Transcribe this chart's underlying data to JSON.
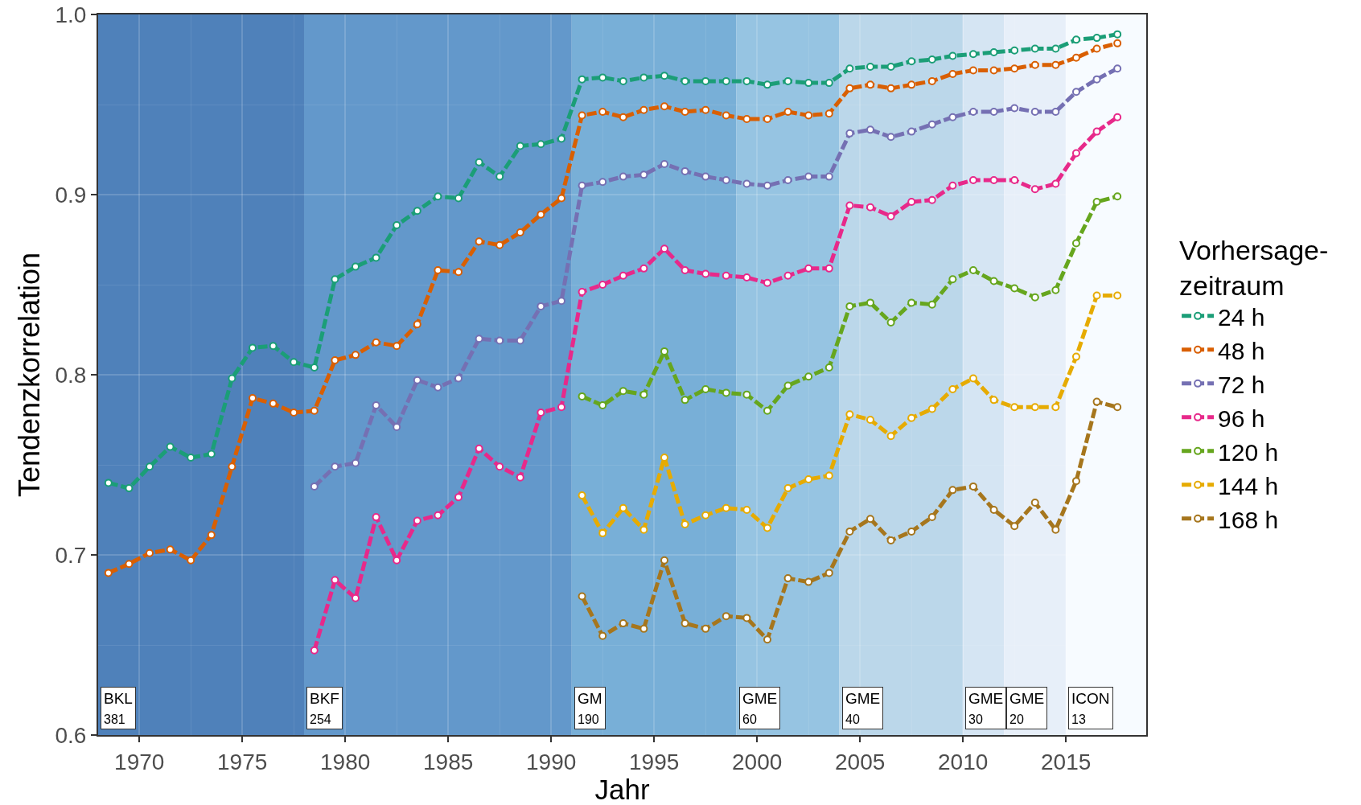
{
  "chart_data": {
    "type": "line",
    "xlabel": "Jahr",
    "ylabel": "Tendenzkorrelation",
    "legend_title": "Vorhersage-\nzeitraum",
    "x": [
      1968.5,
      1969.5,
      1970.5,
      1971.5,
      1972.5,
      1973.5,
      1974.5,
      1975.5,
      1976.5,
      1977.5,
      1978.5,
      1979.5,
      1980.5,
      1981.5,
      1982.5,
      1983.5,
      1984.5,
      1985.5,
      1986.5,
      1987.5,
      1988.5,
      1989.5,
      1990.5,
      1991.5,
      1992.5,
      1993.5,
      1994.5,
      1995.5,
      1996.5,
      1997.5,
      1998.5,
      1999.5,
      2000.5,
      2001.5,
      2002.5,
      2003.5,
      2004.5,
      2005.5,
      2006.5,
      2007.5,
      2008.5,
      2009.5,
      2010.5,
      2011.5,
      2012.5,
      2013.5,
      2014.5,
      2015.5,
      2016.5,
      2017.5
    ],
    "series": [
      {
        "name": "24 h",
        "color": "#1b9e77",
        "values": [
          0.74,
          0.737,
          0.749,
          0.76,
          0.754,
          0.756,
          0.798,
          0.815,
          0.816,
          0.807,
          0.804,
          0.853,
          0.86,
          0.865,
          0.883,
          0.891,
          0.899,
          0.898,
          0.918,
          0.91,
          0.927,
          0.928,
          0.931,
          0.964,
          0.965,
          0.963,
          0.965,
          0.966,
          0.963,
          0.963,
          0.963,
          0.963,
          0.961,
          0.963,
          0.962,
          0.962,
          0.97,
          0.971,
          0.971,
          0.974,
          0.975,
          0.977,
          0.978,
          0.979,
          0.98,
          0.981,
          0.981,
          0.986,
          0.987,
          0.989
        ]
      },
      {
        "name": "48 h",
        "color": "#d95f02",
        "values": [
          0.69,
          0.695,
          0.701,
          0.703,
          0.697,
          0.711,
          0.749,
          0.787,
          0.784,
          0.779,
          0.78,
          0.808,
          0.811,
          0.818,
          0.816,
          0.828,
          0.858,
          0.857,
          0.874,
          0.872,
          0.879,
          0.889,
          0.898,
          0.944,
          0.946,
          0.943,
          0.947,
          0.949,
          0.946,
          0.947,
          0.944,
          0.942,
          0.942,
          0.946,
          0.944,
          0.945,
          0.959,
          0.961,
          0.959,
          0.961,
          0.963,
          0.967,
          0.969,
          0.969,
          0.97,
          0.972,
          0.972,
          0.976,
          0.981,
          0.984
        ]
      },
      {
        "name": "72 h",
        "color": "#7570b3",
        "values": [
          null,
          null,
          null,
          null,
          null,
          null,
          null,
          null,
          null,
          null,
          0.738,
          0.749,
          0.751,
          0.783,
          0.771,
          0.797,
          0.793,
          0.798,
          0.82,
          0.819,
          0.819,
          0.838,
          0.841,
          0.905,
          0.907,
          0.91,
          0.911,
          0.917,
          0.913,
          0.91,
          0.908,
          0.906,
          0.905,
          0.908,
          0.91,
          0.91,
          0.934,
          0.936,
          0.932,
          0.935,
          0.939,
          0.943,
          0.946,
          0.946,
          0.948,
          0.946,
          0.946,
          0.957,
          0.964,
          0.97
        ]
      },
      {
        "name": "96 h",
        "color": "#e7298a",
        "values": [
          null,
          null,
          null,
          null,
          null,
          null,
          null,
          null,
          null,
          null,
          0.647,
          0.686,
          0.676,
          0.721,
          0.697,
          0.719,
          0.722,
          0.732,
          0.759,
          0.749,
          0.743,
          0.779,
          0.782,
          0.846,
          0.85,
          0.855,
          0.859,
          0.87,
          0.858,
          0.856,
          0.855,
          0.854,
          0.851,
          0.855,
          0.859,
          0.859,
          0.894,
          0.893,
          0.888,
          0.896,
          0.897,
          0.905,
          0.908,
          0.908,
          0.908,
          0.903,
          0.906,
          0.923,
          0.935,
          0.943
        ]
      },
      {
        "name": "120 h",
        "color": "#66a61e",
        "values": [
          null,
          null,
          null,
          null,
          null,
          null,
          null,
          null,
          null,
          null,
          null,
          null,
          null,
          null,
          null,
          null,
          null,
          null,
          null,
          null,
          null,
          null,
          null,
          0.788,
          0.783,
          0.791,
          0.789,
          0.813,
          0.786,
          0.792,
          0.79,
          0.789,
          0.78,
          0.794,
          0.799,
          0.804,
          0.838,
          0.84,
          0.829,
          0.84,
          0.839,
          0.853,
          0.858,
          0.852,
          0.848,
          0.843,
          0.847,
          0.873,
          0.896,
          0.899
        ]
      },
      {
        "name": "144 h",
        "color": "#e6ab02",
        "values": [
          null,
          null,
          null,
          null,
          null,
          null,
          null,
          null,
          null,
          null,
          null,
          null,
          null,
          null,
          null,
          null,
          null,
          null,
          null,
          null,
          null,
          null,
          null,
          0.733,
          0.712,
          0.726,
          0.714,
          0.754,
          0.717,
          0.722,
          0.726,
          0.725,
          0.715,
          0.737,
          0.742,
          0.744,
          0.778,
          0.775,
          0.766,
          0.776,
          0.781,
          0.792,
          0.798,
          0.786,
          0.782,
          0.782,
          0.782,
          0.81,
          0.844,
          0.844
        ]
      },
      {
        "name": "168 h",
        "color": "#a6761d",
        "values": [
          null,
          null,
          null,
          null,
          null,
          null,
          null,
          null,
          null,
          null,
          null,
          null,
          null,
          null,
          null,
          null,
          null,
          null,
          null,
          null,
          null,
          null,
          null,
          0.677,
          0.655,
          0.662,
          0.659,
          0.697,
          0.662,
          0.659,
          0.666,
          0.665,
          0.653,
          0.687,
          0.685,
          0.69,
          0.713,
          0.72,
          0.708,
          0.713,
          0.721,
          0.736,
          0.738,
          0.725,
          0.716,
          0.729,
          0.714,
          0.741,
          0.785,
          0.782
        ]
      }
    ],
    "xlim": [
      1968,
      2018.9
    ],
    "xticks": [
      1970,
      1975,
      1980,
      1985,
      1990,
      1995,
      2000,
      2005,
      2010,
      2015
    ],
    "ylim": [
      0.6,
      1
    ],
    "yticks": [
      0.6,
      0.7,
      0.8,
      0.9,
      {
        "value": 1,
        "label": "1.0"
      }
    ],
    "bands": [
      {
        "axis": "x",
        "from": 1968,
        "to": 1978,
        "label": "BKL\n381",
        "color": "#4f81ba"
      },
      {
        "axis": "x",
        "from": 1978,
        "to": 1991,
        "label": "BKF\n254",
        "color": "#6398cb"
      },
      {
        "axis": "x",
        "from": 1991,
        "to": 1999,
        "label": "GM\n190",
        "color": "#78afd7"
      },
      {
        "axis": "x",
        "from": 1999,
        "to": 2004,
        "label": "GME\n60",
        "color": "#96c4e2"
      },
      {
        "axis": "x",
        "from": 2004,
        "to": 2010,
        "label": "GME\n40",
        "color": "#bbd7ea"
      },
      {
        "axis": "x",
        "from": 2010,
        "to": 2012,
        "label": "GME\n30",
        "color": "#d5e5f3"
      },
      {
        "axis": "x",
        "from": 2012,
        "to": 2015,
        "label": "GME\n20",
        "color": "#e7eff9"
      },
      {
        "axis": "x",
        "from": 2015,
        "to": 2018.9,
        "label": "ICON\n13",
        "color": "#f7fbff"
      }
    ],
    "grid": true,
    "legend": "right",
    "marker": "circle",
    "line_style": "dashed"
  }
}
